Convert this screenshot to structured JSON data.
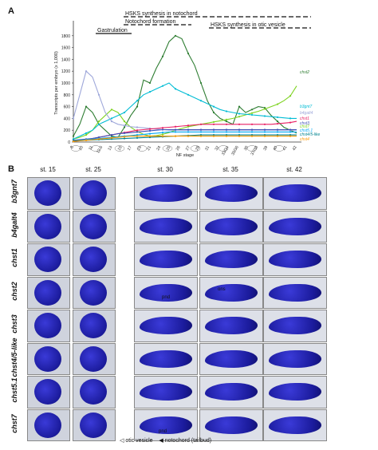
{
  "panel_a_letter": "A",
  "panel_b_letter": "B",
  "chart_data": {
    "type": "line",
    "ylabel": "Transcripts per embryo (x 1,000)",
    "xlabel": "NF stage",
    "ylim": [
      0,
      2000
    ],
    "yticks": [
      0,
      200,
      400,
      600,
      800,
      1000,
      1200,
      1400,
      1600,
      1800
    ],
    "x": [
      "8",
      "10",
      "10.5",
      "11",
      "12",
      "12.5",
      "13",
      "14",
      "15",
      "16",
      "17",
      "18",
      "19",
      "20",
      "21",
      "22",
      "23",
      "24",
      "25",
      "26",
      "27",
      "28",
      "29",
      "30",
      "31",
      "32",
      "33",
      "34",
      "35",
      "36",
      "37",
      "38",
      "39",
      "40",
      "41",
      "42"
    ],
    "xticklabels": [
      "8",
      "10",
      "11",
      "12.5",
      "13",
      "15",
      "17",
      "19",
      "21",
      "24",
      "25",
      "26",
      "27",
      "28",
      "31",
      "32",
      "33/34",
      "35/36",
      "36",
      "37/38",
      "39",
      "40",
      "41",
      "42"
    ],
    "phases": [
      {
        "label": "Gastrulation"
      },
      {
        "label": "Notochord formation"
      },
      {
        "label": "HSKS synthesis in notochord"
      },
      {
        "label": "HSKS synthesis in otic vesicle"
      }
    ],
    "series": [
      {
        "name": "chst2",
        "color": "#2e7d32",
        "values": [
          100,
          300,
          600,
          500,
          300,
          200,
          100,
          80,
          250,
          450,
          600,
          1050,
          1000,
          1250,
          1450,
          1700,
          1800,
          1750,
          1500,
          1300,
          1000,
          700,
          500,
          400,
          350,
          300,
          600,
          500,
          550,
          600,
          580,
          450,
          350,
          250,
          200,
          150
        ]
      },
      {
        "name": "chst7",
        "color": "#7ed321",
        "values": [
          50,
          80,
          120,
          200,
          350,
          450,
          550,
          500,
          350,
          250,
          180,
          130,
          100,
          110,
          130,
          160,
          200,
          230,
          260,
          280,
          300,
          320,
          340,
          360,
          380,
          400,
          430,
          460,
          490,
          520,
          560,
          600,
          640,
          700,
          780,
          950
        ]
      },
      {
        "name": "b3gnt7",
        "color": "#00bcd4",
        "values": [
          50,
          100,
          150,
          200,
          300,
          350,
          400,
          450,
          500,
          600,
          700,
          800,
          850,
          900,
          950,
          1000,
          900,
          850,
          800,
          750,
          700,
          650,
          600,
          550,
          520,
          500,
          480,
          470,
          460,
          450,
          440,
          430,
          420,
          410,
          400,
          400
        ]
      },
      {
        "name": "b4galt4",
        "color": "#9fa8da",
        "values": [
          400,
          800,
          1200,
          1100,
          800,
          500,
          350,
          300,
          280,
          260,
          250,
          240,
          230,
          220,
          210,
          200,
          200,
          200,
          200,
          200,
          200,
          200,
          200,
          200,
          200,
          200,
          200,
          200,
          200,
          200,
          200,
          200,
          200,
          200,
          200,
          200
        ]
      },
      {
        "name": "chst1",
        "color": "#e91e63",
        "values": [
          20,
          30,
          40,
          60,
          80,
          100,
          120,
          140,
          160,
          180,
          200,
          210,
          220,
          230,
          240,
          250,
          260,
          270,
          280,
          290,
          300,
          300,
          300,
          300,
          300,
          300,
          300,
          300,
          300,
          300,
          300,
          300,
          310,
          320,
          330,
          350
        ]
      },
      {
        "name": "chst3",
        "color": "#3f51b5",
        "values": [
          30,
          40,
          50,
          60,
          80,
          100,
          120,
          140,
          150,
          160,
          170,
          180,
          190,
          200,
          210,
          210,
          210,
          210,
          210,
          210,
          210,
          210,
          210,
          210,
          210,
          210,
          210,
          210,
          210,
          210,
          210,
          210,
          210,
          210,
          210,
          210
        ]
      },
      {
        "name": "chst5.1",
        "color": "#03a9f4",
        "values": [
          20,
          30,
          40,
          50,
          60,
          70,
          80,
          90,
          100,
          110,
          120,
          130,
          140,
          150,
          160,
          170,
          170,
          170,
          170,
          170,
          170,
          170,
          170,
          170,
          170,
          170,
          170,
          170,
          170,
          170,
          170,
          170,
          170,
          170,
          170,
          170
        ]
      },
      {
        "name": "chst4/5-like",
        "color": "#00838f",
        "values": [
          20,
          25,
          30,
          35,
          40,
          45,
          50,
          55,
          60,
          65,
          70,
          75,
          80,
          85,
          90,
          95,
          100,
          105,
          110,
          115,
          120,
          120,
          120,
          120,
          120,
          120,
          120,
          120,
          120,
          120,
          120,
          120,
          120,
          120,
          120,
          120
        ]
      },
      {
        "name": "chst4",
        "color": "#ff9800",
        "values": [
          10,
          20,
          30,
          40,
          50,
          60,
          70,
          80,
          90,
          100,
          100,
          100,
          100,
          100,
          100,
          100,
          100,
          100,
          100,
          100,
          100,
          100,
          100,
          100,
          100,
          100,
          100,
          100,
          100,
          100,
          100,
          100,
          100,
          100,
          100,
          100
        ]
      }
    ]
  },
  "panel_b": {
    "columns": [
      "st. 15",
      "st. 25",
      "st. 30",
      "st. 35",
      "st. 42"
    ],
    "rows": [
      "b3gnt7",
      "b4galt4",
      "chst1",
      "chst2",
      "chst3",
      "chst4/5-like",
      "chst5.1",
      "chst7"
    ],
    "annotations": {
      "pnd": "pnd",
      "ons": "ons"
    },
    "legend": {
      "otic": "otic vesicle",
      "notochord": "notochord (tailbud)"
    }
  }
}
